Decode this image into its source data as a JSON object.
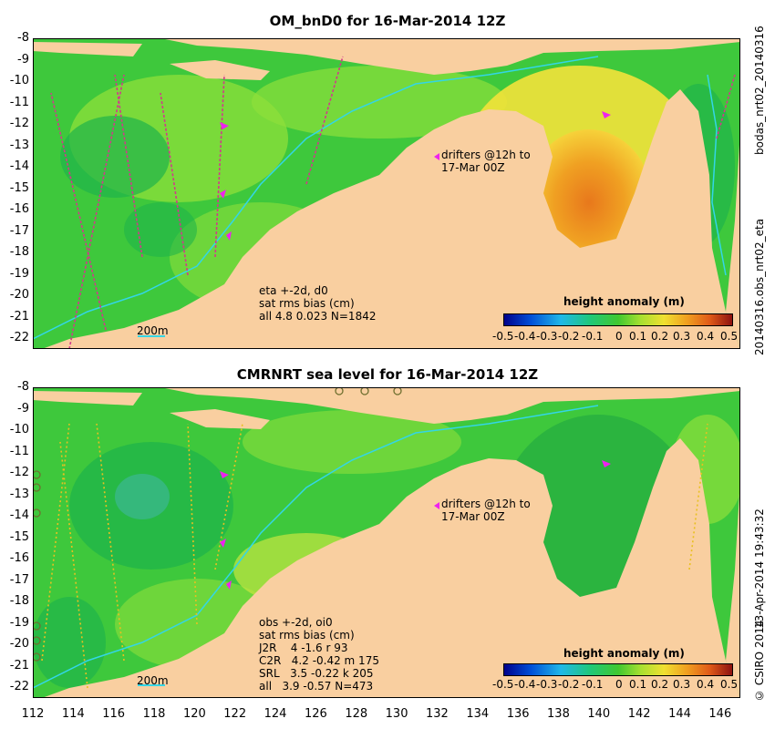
{
  "top": {
    "title": "OM_bnD0 for 16-Mar-2014 12Z",
    "drifters_line1": "drifters @12h to",
    "drifters_line2": "17-Mar 00Z",
    "stats": [
      "eta +-2d, d0",
      "sat rms bias (cm)",
      "all 4.8 0.023 N=1842"
    ],
    "scale_label": "200m",
    "colorbar_title": "height anomaly (m)",
    "side_label_top": "bodas_nrt02_20140316",
    "side_label_bottom": "20140316.obs_nrt02_eta"
  },
  "bottom": {
    "title": "CMRNRT sea level  for 16-Mar-2014 12Z",
    "drifters_line1": "drifters @12h to",
    "drifters_line2": "17-Mar 00Z",
    "stats": [
      "obs +-2d, oi0",
      "sat rms bias (cm)",
      "J2R    4 -1.6 r 93",
      "C2R   4.2 -0.42 m 175",
      "SRL   3.5 -0.22 k 205",
      "all   3.9 -0.57 N=473"
    ],
    "scale_label": "200m",
    "colorbar_title": "height anomaly (m)",
    "side_label_top": "13-Apr-2014 19:43:32",
    "side_label_bottom": "© CSIRO 2014"
  },
  "colorbar_ticks": [
    "-0.5",
    "-0.4",
    "-0.3",
    "-0.2",
    "-0.1",
    "0",
    "0.1",
    "0.2",
    "0.3",
    "0.4",
    "0.5"
  ],
  "lat_ticks": [
    "-8",
    "-9",
    "-10",
    "-11",
    "-12",
    "-13",
    "-14",
    "-15",
    "-16",
    "-17",
    "-18",
    "-19",
    "-20",
    "-21",
    "-22"
  ],
  "lon_ticks": [
    "112",
    "114",
    "116",
    "118",
    "120",
    "122",
    "124",
    "126",
    "128",
    "130",
    "132",
    "134",
    "136",
    "138",
    "140",
    "142",
    "144",
    "146"
  ],
  "colors": {
    "land": "#f9cfa0",
    "ocean_base": "#3ec83c",
    "ocean_light": "#8fe03a",
    "ocean_dark": "#1fb44a",
    "warm": "#f1a020",
    "hot": "#e8781c",
    "isobath": "#33d6e6",
    "drifter": "#ee22ee"
  }
}
